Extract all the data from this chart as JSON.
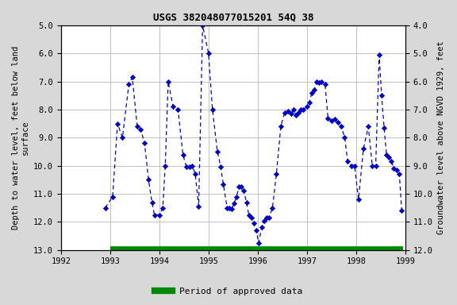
{
  "title": "USGS 382048077015201 54Q 38",
  "ylabel_left": "Depth to water level, feet below land\nsurface",
  "ylabel_right": "Groundwater level above NGVD 1929, feet",
  "xlim": [
    1992,
    1999
  ],
  "ylim_left": [
    13.0,
    5.0
  ],
  "ylim_right": [
    12.0,
    4.0
  ],
  "yticks_left": [
    5.0,
    6.0,
    7.0,
    8.0,
    9.0,
    10.0,
    11.0,
    12.0,
    13.0
  ],
  "yticks_right": [
    4.0,
    5.0,
    6.0,
    7.0,
    8.0,
    9.0,
    10.0,
    11.0,
    12.0
  ],
  "xticks": [
    1992,
    1993,
    1994,
    1995,
    1996,
    1997,
    1998,
    1999
  ],
  "background_color": "#d8d8d8",
  "plot_bg_color": "#ffffff",
  "line_color": "#0000cc",
  "marker_color": "#0000cc",
  "green_bar_color": "#008800",
  "legend_label": "Period of approved data",
  "x_data": [
    1992.9,
    1993.05,
    1993.15,
    1993.25,
    1993.38,
    1993.45,
    1993.55,
    1993.62,
    1993.7,
    1993.78,
    1993.85,
    1993.9,
    1994.0,
    1994.07,
    1994.12,
    1994.18,
    1994.28,
    1994.38,
    1994.48,
    1994.55,
    1994.62,
    1994.67,
    1994.73,
    1994.8,
    1994.88,
    1995.0,
    1995.08,
    1995.18,
    1995.25,
    1995.3,
    1995.38,
    1995.42,
    1995.47,
    1995.52,
    1995.57,
    1995.62,
    1995.67,
    1995.72,
    1995.77,
    1995.82,
    1995.87,
    1995.92,
    1995.97,
    1996.02,
    1996.08,
    1996.13,
    1996.18,
    1996.23,
    1996.3,
    1996.38,
    1996.47,
    1996.55,
    1996.62,
    1996.68,
    1996.73,
    1996.78,
    1996.83,
    1996.88,
    1996.93,
    1997.0,
    1997.05,
    1997.1,
    1997.15,
    1997.2,
    1997.25,
    1997.3,
    1997.37,
    1997.43,
    1997.5,
    1997.57,
    1997.63,
    1997.7,
    1997.77,
    1997.83,
    1997.9,
    1997.97,
    1998.05,
    1998.15,
    1998.25,
    1998.33,
    1998.4,
    1998.47,
    1998.52,
    1998.57,
    1998.62,
    1998.67,
    1998.72,
    1998.77,
    1998.83,
    1998.88,
    1998.93
  ],
  "y_data": [
    11.5,
    11.1,
    8.5,
    9.0,
    7.1,
    6.85,
    8.6,
    8.7,
    9.2,
    10.5,
    11.3,
    11.75,
    11.75,
    11.5,
    10.0,
    7.0,
    7.9,
    8.0,
    9.6,
    10.05,
    10.05,
    10.0,
    10.3,
    11.45,
    5.0,
    6.0,
    8.0,
    9.5,
    10.05,
    10.65,
    11.5,
    11.5,
    11.55,
    11.35,
    11.1,
    10.75,
    10.75,
    10.9,
    11.3,
    11.75,
    11.85,
    12.05,
    12.3,
    12.75,
    12.2,
    11.95,
    11.85,
    11.85,
    11.5,
    10.3,
    8.6,
    8.1,
    8.05,
    8.15,
    8.0,
    8.2,
    8.1,
    8.0,
    8.0,
    7.9,
    7.75,
    7.4,
    7.3,
    7.0,
    7.05,
    7.0,
    7.1,
    8.3,
    8.4,
    8.35,
    8.45,
    8.6,
    9.0,
    9.85,
    10.0,
    10.0,
    11.2,
    9.4,
    8.6,
    10.0,
    10.0,
    6.05,
    7.5,
    8.65,
    9.6,
    9.7,
    9.85,
    10.1,
    10.15,
    10.3,
    11.6
  ],
  "approved_bar_xmin": 1993.0,
  "approved_bar_xmax": 1998.95,
  "approved_bar_y": 13.0
}
